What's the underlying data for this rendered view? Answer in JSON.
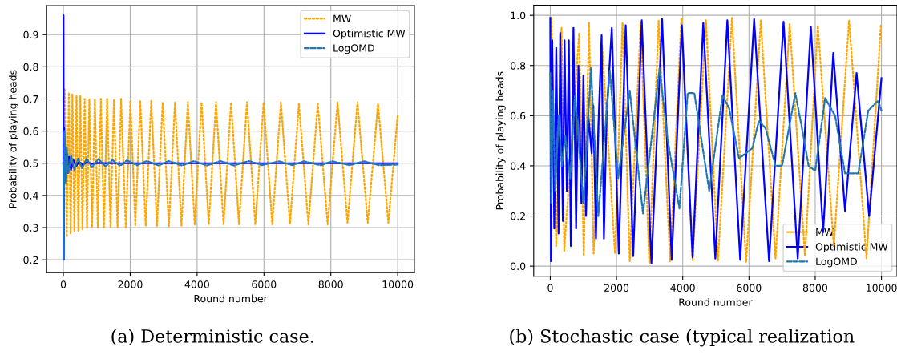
{
  "chart_data": [
    {
      "type": "line",
      "xlabel": "Round number",
      "ylabel": "Probability of playing heads",
      "xlim": [
        -500,
        10500
      ],
      "ylim": [
        0.16,
        0.99
      ],
      "xticks": [
        0,
        2000,
        4000,
        6000,
        8000,
        10000
      ],
      "yticks": [
        0.2,
        0.3,
        0.4,
        0.5,
        0.6,
        0.7,
        0.8,
        0.9
      ],
      "grid": true,
      "legend": "top right",
      "annotations": [
        "(a) Deterministic case."
      ],
      "series": [
        {
          "name": "MW",
          "color": "#ffa500",
          "line_style": "dotted",
          "x": [
            41,
            102,
            164,
            217,
            270,
            331,
            393,
            450,
            507,
            572,
            638,
            707,
            777,
            859,
            941,
            1031,
            1121,
            1215,
            1309,
            1411,
            1514,
            1620,
            1727,
            1866,
            2005,
            2152,
            2300,
            2463,
            2627,
            2799,
            2971,
            3155,
            3339,
            3531,
            3723,
            3928,
            4133,
            4349,
            4566,
            4791,
            5016,
            5253,
            5491,
            5740,
            5990,
            6248,
            6506,
            6776,
            7046,
            7328,
            7610,
            7905,
            8200,
            8498,
            8797,
            9104,
            9411,
            9720,
            10000
          ],
          "values": [
            0.73,
            0.27,
            0.72,
            0.28,
            0.715,
            0.29,
            0.71,
            0.29,
            0.71,
            0.295,
            0.7,
            0.3,
            0.7,
            0.3,
            0.7,
            0.3,
            0.7,
            0.3,
            0.7,
            0.3,
            0.7,
            0.3,
            0.7,
            0.3,
            0.695,
            0.305,
            0.695,
            0.305,
            0.695,
            0.305,
            0.69,
            0.305,
            0.69,
            0.305,
            0.69,
            0.31,
            0.69,
            0.31,
            0.69,
            0.31,
            0.69,
            0.31,
            0.69,
            0.31,
            0.69,
            0.31,
            0.69,
            0.31,
            0.685,
            0.31,
            0.685,
            0.31,
            0.69,
            0.315,
            0.69,
            0.315,
            0.685,
            0.315,
            0.65
          ]
        },
        {
          "name": "Optimistic MW",
          "color": "#0000ff",
          "line_style": "solid",
          "x": [
            0,
            5,
            12,
            25,
            50,
            80,
            120,
            170,
            230,
            300,
            380,
            470,
            570,
            700,
            850,
            1000,
            1500,
            10000
          ],
          "values": [
            0.5,
            0.96,
            0.2,
            0.61,
            0.45,
            0.53,
            0.47,
            0.52,
            0.48,
            0.51,
            0.49,
            0.505,
            0.495,
            0.503,
            0.498,
            0.501,
            0.5,
            0.5
          ]
        },
        {
          "name": "LogOMD",
          "color": "#1f77b4",
          "line_style": "dashed",
          "x": [
            0,
            10,
            30,
            60,
            100,
            150,
            230,
            330,
            440,
            560,
            700,
            850,
            1050,
            1260,
            1470,
            1700,
            1900,
            2200,
            2500,
            2850,
            3150,
            3550,
            3900,
            4300,
            4700,
            5100,
            5550,
            5950,
            6450,
            6850,
            7200,
            7700,
            8050,
            8550,
            9000,
            9450,
            10000
          ],
          "values": [
            0.5,
            0.2,
            0.6,
            0.44,
            0.55,
            0.47,
            0.525,
            0.48,
            0.515,
            0.485,
            0.515,
            0.487,
            0.513,
            0.49,
            0.51,
            0.492,
            0.509,
            0.494,
            0.507,
            0.493,
            0.507,
            0.493,
            0.507,
            0.493,
            0.507,
            0.493,
            0.507,
            0.494,
            0.506,
            0.494,
            0.506,
            0.494,
            0.506,
            0.494,
            0.506,
            0.494,
            0.496
          ]
        }
      ]
    },
    {
      "type": "line",
      "xlabel": "Round number",
      "ylabel": "Probability of playing heads",
      "xlim": [
        -500,
        10470
      ],
      "ylim": [
        -0.04,
        1.04
      ],
      "xticks": [
        0,
        2000,
        4000,
        6000,
        8000,
        10000
      ],
      "yticks": [
        {
          "value": 0,
          "label": "0.0"
        },
        0.2,
        0.4,
        0.6,
        0.8,
        {
          "value": 1,
          "label": "1.0"
        }
      ],
      "grid": true,
      "legend": "bottom right",
      "annotations": [
        "(b) Stochastic case (typical realization"
      ],
      "series": [
        {
          "name": "MW",
          "color": "#ffa500",
          "line_style": "dotted",
          "x": [
            32,
            178,
            339,
            420,
            872,
            1010,
            1171,
            1309,
            1567,
            1955,
            2181,
            2399,
            2730,
            2989,
            3271,
            3619,
            3958,
            4297,
            4701,
            5065,
            5485,
            5913,
            6357,
            6801,
            7229,
            7690,
            8078,
            8562,
            9023,
            9548,
            9984
          ],
          "values": [
            0.99,
            0.08,
            0.95,
            0.06,
            0.93,
            0.04,
            0.97,
            0.05,
            0.88,
            0.05,
            0.97,
            0.02,
            0.97,
            0.01,
            0.98,
            0.02,
            0.99,
            0.02,
            0.98,
            0.02,
            0.99,
            0.015,
            0.98,
            0.03,
            0.965,
            0.04,
            0.96,
            0.08,
            0.98,
            0.03,
            0.965
          ]
        },
        {
          "name": "Optimistic MW",
          "color": "#0000ff",
          "line_style": "solid",
          "x": [
            0,
            20,
            60,
            120,
            180,
            250,
            300,
            380,
            430,
            500,
            560,
            620,
            700,
            780,
            850,
            940,
            1000,
            1080,
            1150,
            1250,
            1300,
            1380,
            1450,
            1550,
            1620,
            1700,
            1858,
            2068,
            2278,
            2504,
            2763,
            3053,
            3376,
            3667,
            3974,
            4297,
            4620,
            4984,
            5347,
            5735,
            6155,
            6607,
            7044,
            7472,
            7868,
            8239,
            8546,
            8901,
            9249,
            9628,
            10000
          ],
          "values": [
            0.99,
            0.02,
            0.9,
            0.15,
            0.87,
            0.13,
            0.93,
            0.18,
            0.9,
            0.3,
            0.9,
            0.08,
            0.95,
            0.15,
            0.8,
            0.25,
            0.76,
            0.2,
            0.6,
            0.45,
            0.64,
            0.11,
            0.55,
            0.92,
            0.11,
            0.6,
            0.95,
            0.05,
            0.96,
            0.04,
            0.98,
            0.01,
            0.985,
            0.025,
            0.96,
            0.035,
            0.97,
            0.03,
            0.98,
            0.025,
            0.985,
            0.02,
            0.975,
            0.03,
            0.955,
            0.135,
            0.85,
            0.22,
            0.77,
            0.2,
            0.75
          ]
        },
        {
          "name": "LogOMD",
          "color": "#1f77b4",
          "line_style": "dashed",
          "x": [
            0,
            30,
            80,
            150,
            250,
            350,
            450,
            600,
            750,
            1000,
            1230,
            1450,
            1800,
            2050,
            2400,
            2800,
            3300,
            3550,
            3900,
            4150,
            4350,
            4800,
            5200,
            5400,
            5700,
            6100,
            6300,
            6500,
            6800,
            7000,
            7400,
            7600,
            7800,
            8000,
            8300,
            8600,
            8900,
            9300,
            9600,
            9900,
            10000
          ],
          "values": [
            0.77,
            0.25,
            0.7,
            0.3,
            0.6,
            0.4,
            0.52,
            0.35,
            0.68,
            0.25,
            0.79,
            0.2,
            0.78,
            0.35,
            0.7,
            0.21,
            0.79,
            0.5,
            0.23,
            0.69,
            0.69,
            0.3,
            0.68,
            0.63,
            0.43,
            0.47,
            0.58,
            0.55,
            0.4,
            0.4,
            0.69,
            0.55,
            0.4,
            0.38,
            0.67,
            0.6,
            0.37,
            0.37,
            0.62,
            0.66,
            0.62
          ]
        }
      ]
    }
  ]
}
